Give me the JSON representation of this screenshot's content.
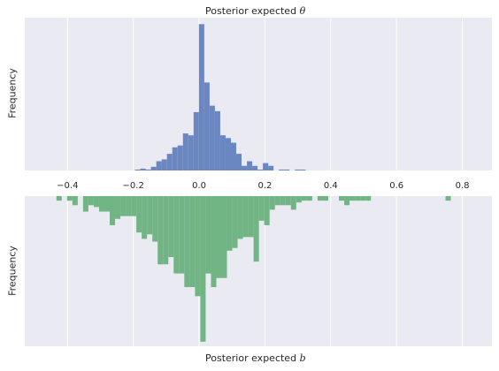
{
  "chart_data": [
    {
      "type": "histogram",
      "title_text": "Posterior expected ",
      "title_symbol": "θ",
      "xlabel": "",
      "ylabel": "Frequency",
      "xlim": [
        -0.53,
        0.89
      ],
      "ylim": [
        0,
        165
      ],
      "grid": true,
      "xticks": [
        "−0.4",
        "−0.2",
        "0.0",
        "0.2",
        "0.4",
        "0.6",
        "0.8"
      ],
      "xtick_values": [
        -0.4,
        -0.2,
        0.0,
        0.2,
        0.4,
        0.6,
        0.8
      ],
      "color": "#6a87c2",
      "bin_width": 0.0162,
      "bins": [
        {
          "x": -0.195,
          "count": 1
        },
        {
          "x": -0.1788,
          "count": 2
        },
        {
          "x": -0.1626,
          "count": 1
        },
        {
          "x": -0.1464,
          "count": 4
        },
        {
          "x": -0.1302,
          "count": 10
        },
        {
          "x": -0.114,
          "count": 12
        },
        {
          "x": -0.0978,
          "count": 18
        },
        {
          "x": -0.0816,
          "count": 25
        },
        {
          "x": -0.0654,
          "count": 27
        },
        {
          "x": -0.0492,
          "count": 40
        },
        {
          "x": -0.033,
          "count": 38
        },
        {
          "x": -0.0168,
          "count": 63
        },
        {
          "x": -0.0006,
          "count": 158
        },
        {
          "x": 0.0156,
          "count": 95
        },
        {
          "x": 0.0318,
          "count": 70
        },
        {
          "x": 0.048,
          "count": 64
        },
        {
          "x": 0.0642,
          "count": 38
        },
        {
          "x": 0.0804,
          "count": 35
        },
        {
          "x": 0.0966,
          "count": 30
        },
        {
          "x": 0.1128,
          "count": 18
        },
        {
          "x": 0.129,
          "count": 5
        },
        {
          "x": 0.1452,
          "count": 10
        },
        {
          "x": 0.1614,
          "count": 5
        },
        {
          "x": 0.1776,
          "count": 1
        },
        {
          "x": 0.1938,
          "count": 8
        },
        {
          "x": 0.21,
          "count": 5
        },
        {
          "x": 0.2262,
          "count": 0
        },
        {
          "x": 0.2424,
          "count": 1
        },
        {
          "x": 0.2586,
          "count": 1
        },
        {
          "x": 0.2748,
          "count": 0
        },
        {
          "x": 0.291,
          "count": 1
        },
        {
          "x": 0.3072,
          "count": 1
        }
      ]
    },
    {
      "type": "histogram",
      "title_text": "",
      "title_symbol": "",
      "xlabel_text": "Posterior expected ",
      "xlabel_symbol": "b",
      "ylabel": "Frequency",
      "xlim": [
        -0.53,
        0.89
      ],
      "ylim": [
        0,
        165
      ],
      "inverted": true,
      "grid": true,
      "color": "#71b585",
      "bin_width": 0.0162,
      "bins": [
        {
          "x": -0.4338,
          "count": 5
        },
        {
          "x": -0.4014,
          "count": 5
        },
        {
          "x": -0.3852,
          "count": 10
        },
        {
          "x": -0.3528,
          "count": 17
        },
        {
          "x": -0.3366,
          "count": 10
        },
        {
          "x": -0.3204,
          "count": 12
        },
        {
          "x": -0.3042,
          "count": 17
        },
        {
          "x": -0.288,
          "count": 17
        },
        {
          "x": -0.2718,
          "count": 32
        },
        {
          "x": -0.2556,
          "count": 25
        },
        {
          "x": -0.2394,
          "count": 22
        },
        {
          "x": -0.2232,
          "count": 22
        },
        {
          "x": -0.207,
          "count": 22
        },
        {
          "x": -0.1908,
          "count": 40
        },
        {
          "x": -0.1746,
          "count": 47
        },
        {
          "x": -0.1584,
          "count": 42
        },
        {
          "x": -0.1422,
          "count": 50
        },
        {
          "x": -0.126,
          "count": 75
        },
        {
          "x": -0.1098,
          "count": 75
        },
        {
          "x": -0.0936,
          "count": 67
        },
        {
          "x": -0.0774,
          "count": 85
        },
        {
          "x": -0.0612,
          "count": 85
        },
        {
          "x": -0.045,
          "count": 100
        },
        {
          "x": -0.0288,
          "count": 100
        },
        {
          "x": -0.0126,
          "count": 110
        },
        {
          "x": 0.0036,
          "count": 160
        },
        {
          "x": 0.0198,
          "count": 85
        },
        {
          "x": 0.036,
          "count": 100
        },
        {
          "x": 0.0522,
          "count": 90
        },
        {
          "x": 0.0684,
          "count": 90
        },
        {
          "x": 0.0846,
          "count": 60
        },
        {
          "x": 0.1008,
          "count": 57
        },
        {
          "x": 0.117,
          "count": 47
        },
        {
          "x": 0.1332,
          "count": 45
        },
        {
          "x": 0.1494,
          "count": 45
        },
        {
          "x": 0.1656,
          "count": 72
        },
        {
          "x": 0.1818,
          "count": 27
        },
        {
          "x": 0.198,
          "count": 32
        },
        {
          "x": 0.2142,
          "count": 15
        },
        {
          "x": 0.2304,
          "count": 10
        },
        {
          "x": 0.2466,
          "count": 10
        },
        {
          "x": 0.2628,
          "count": 10
        },
        {
          "x": 0.279,
          "count": 15
        },
        {
          "x": 0.2952,
          "count": 7
        },
        {
          "x": 0.3114,
          "count": 5
        },
        {
          "x": 0.3276,
          "count": 5
        },
        {
          "x": 0.36,
          "count": 5
        },
        {
          "x": 0.3762,
          "count": 5
        },
        {
          "x": 0.4248,
          "count": 5
        },
        {
          "x": 0.441,
          "count": 10
        },
        {
          "x": 0.4572,
          "count": 5
        },
        {
          "x": 0.4734,
          "count": 5
        },
        {
          "x": 0.4896,
          "count": 5
        },
        {
          "x": 0.5058,
          "count": 5
        },
        {
          "x": 0.7488,
          "count": 5
        }
      ]
    }
  ]
}
